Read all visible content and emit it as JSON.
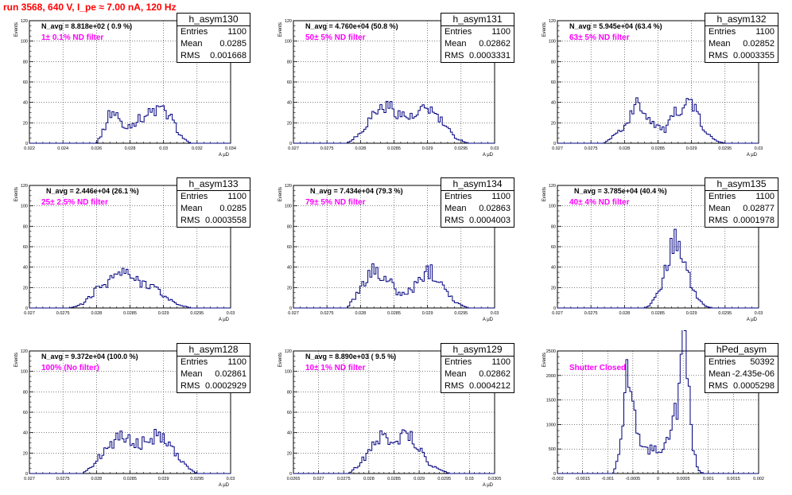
{
  "title": "run 3568,   640 V, I_pe ≈ 7.00 nA, 120 Hz",
  "colors": {
    "title": "#ff0000",
    "hist": "#000080",
    "filter": "#ff00ff",
    "grid": "#000000"
  },
  "chart_data": [
    {
      "type": "bar",
      "histogram": "h_asym130",
      "navg": "N_avg = 8.818e+02 ( 0.9 %)",
      "filter": "1± 0.1% ND filter",
      "stats": {
        "entries": "1100",
        "mean": "0.0285",
        "rms": "0.001668"
      },
      "xlim": [
        0.022,
        0.034
      ],
      "ylim": [
        0,
        120
      ],
      "ylabel": "Events",
      "xlabel": "A μD",
      "xticks": [
        0.022,
        0.024,
        0.026,
        0.028,
        0.03,
        0.032,
        0.034
      ],
      "xtick_labels": [
        "0.022",
        "0.024",
        "0.026",
        "0.028",
        "0.03",
        "0.032",
        "0.034"
      ],
      "yticks": [
        0,
        20,
        40,
        60,
        80,
        100,
        120
      ],
      "shape": [
        [
          0.026,
          0
        ],
        [
          0.0264,
          12
        ],
        [
          0.0268,
          30
        ],
        [
          0.0272,
          30
        ],
        [
          0.0276,
          14
        ],
        [
          0.0282,
          20
        ],
        [
          0.029,
          28
        ],
        [
          0.0298,
          34
        ],
        [
          0.0304,
          26
        ],
        [
          0.031,
          8
        ],
        [
          0.0314,
          2
        ],
        [
          0.0316,
          0
        ]
      ]
    },
    {
      "type": "bar",
      "histogram": "h_asym131",
      "navg": "N_avg = 4.760e+04 (50.8 %)",
      "filter": "50± 5% ND filter",
      "stats": {
        "entries": "1100",
        "mean": "0.02862",
        "rms": "0.0003331"
      },
      "xlim": [
        0.027,
        0.03
      ],
      "ylim": [
        0,
        120
      ],
      "ylabel": "Events",
      "xlabel": "A μD",
      "xticks": [
        0.027,
        0.0275,
        0.028,
        0.0285,
        0.029,
        0.0295,
        0.03
      ],
      "xtick_labels": [
        "0.027",
        "0.0275",
        "0.028",
        "0.0285",
        "0.029",
        "0.0295",
        "0.03"
      ],
      "yticks": [
        0,
        20,
        40,
        60,
        80,
        100,
        120
      ],
      "shape": [
        [
          0.0278,
          0
        ],
        [
          0.028,
          10
        ],
        [
          0.0282,
          30
        ],
        [
          0.0284,
          38
        ],
        [
          0.0286,
          28
        ],
        [
          0.0288,
          24
        ],
        [
          0.029,
          36
        ],
        [
          0.0292,
          22
        ],
        [
          0.0294,
          6
        ],
        [
          0.0296,
          0
        ]
      ]
    },
    {
      "type": "bar",
      "histogram": "h_asym132",
      "navg": "N_avg = 5.945e+04 (63.4 %)",
      "filter": "63± 5% ND filter",
      "stats": {
        "entries": "1100",
        "mean": "0.02852",
        "rms": "0.0003355"
      },
      "xlim": [
        0.027,
        0.03
      ],
      "ylim": [
        0,
        120
      ],
      "ylabel": "Events",
      "xlabel": "A μD",
      "xticks": [
        0.027,
        0.0275,
        0.028,
        0.0285,
        0.029,
        0.0295,
        0.03
      ],
      "xtick_labels": [
        "0.027",
        "0.0275",
        "0.028",
        "0.0285",
        "0.029",
        "0.0295",
        "0.03"
      ],
      "yticks": [
        0,
        20,
        40,
        60,
        80,
        100,
        120
      ],
      "shape": [
        [
          0.0277,
          0
        ],
        [
          0.028,
          16
        ],
        [
          0.0282,
          40
        ],
        [
          0.0284,
          22
        ],
        [
          0.0286,
          12
        ],
        [
          0.0288,
          34
        ],
        [
          0.029,
          42
        ],
        [
          0.0292,
          10
        ],
        [
          0.0294,
          2
        ],
        [
          0.0295,
          0
        ]
      ]
    },
    {
      "type": "bar",
      "histogram": "h_asym133",
      "navg": "N_avg = 2.446e+04 (26.1 %)",
      "filter": "25± 2.5% ND filter",
      "stats": {
        "entries": "1100",
        "mean": "0.0285",
        "rms": "0.0003558"
      },
      "xlim": [
        0.027,
        0.03
      ],
      "ylim": [
        0,
        120
      ],
      "ylabel": "Events",
      "xlabel": "A μD",
      "xticks": [
        0.027,
        0.0275,
        0.028,
        0.0285,
        0.029,
        0.0295,
        0.03
      ],
      "xtick_labels": [
        "0.027",
        "0.0275",
        "0.028",
        "0.0285",
        "0.029",
        "0.0295",
        "0.03"
      ],
      "yticks": [
        0,
        20,
        40,
        60,
        80,
        100,
        120
      ],
      "shape": [
        [
          0.0276,
          0
        ],
        [
          0.0278,
          4
        ],
        [
          0.028,
          18
        ],
        [
          0.0282,
          28
        ],
        [
          0.0284,
          36
        ],
        [
          0.0286,
          26
        ],
        [
          0.0288,
          24
        ],
        [
          0.029,
          12
        ],
        [
          0.0292,
          4
        ],
        [
          0.0294,
          0
        ]
      ]
    },
    {
      "type": "bar",
      "histogram": "h_asym134",
      "navg": "N_avg = 7.434e+04 (79.3 %)",
      "filter": "79± 5% ND filter",
      "stats": {
        "entries": "1100",
        "mean": "0.02863",
        "rms": "0.0004003"
      },
      "xlim": [
        0.027,
        0.03
      ],
      "ylim": [
        0,
        120
      ],
      "ylabel": "Events",
      "xlabel": "A μD",
      "xticks": [
        0.027,
        0.0275,
        0.028,
        0.0285,
        0.029,
        0.0295,
        0.03
      ],
      "xtick_labels": [
        "0.027",
        "0.0275",
        "0.028",
        "0.0285",
        "0.029",
        "0.0295",
        "0.03"
      ],
      "yticks": [
        0,
        20,
        40,
        60,
        80,
        100,
        120
      ],
      "shape": [
        [
          0.0278,
          0
        ],
        [
          0.028,
          18
        ],
        [
          0.0282,
          40
        ],
        [
          0.0284,
          28
        ],
        [
          0.0286,
          12
        ],
        [
          0.0288,
          20
        ],
        [
          0.029,
          38
        ],
        [
          0.0292,
          28
        ],
        [
          0.0294,
          6
        ],
        [
          0.0296,
          0
        ]
      ]
    },
    {
      "type": "bar",
      "histogram": "h_asym135",
      "navg": "N_avg = 3.785e+04 (40.4 %)",
      "filter": "40± 4% ND filter",
      "stats": {
        "entries": "1100",
        "mean": "0.02877",
        "rms": "0.0001978"
      },
      "xlim": [
        0.027,
        0.03
      ],
      "ylim": [
        0,
        120
      ],
      "ylabel": "Events",
      "xlabel": "A μD",
      "xticks": [
        0.027,
        0.0275,
        0.028,
        0.0285,
        0.029,
        0.0295,
        0.03
      ],
      "xtick_labels": [
        "0.027",
        "0.0275",
        "0.028",
        "0.0285",
        "0.029",
        "0.0295",
        "0.03"
      ],
      "yticks": [
        0,
        20,
        40,
        60,
        80,
        100,
        120
      ],
      "shape": [
        [
          0.0283,
          0
        ],
        [
          0.0284,
          4
        ],
        [
          0.0285,
          14
        ],
        [
          0.0286,
          34
        ],
        [
          0.0287,
          58
        ],
        [
          0.0288,
          72
        ],
        [
          0.0289,
          48
        ],
        [
          0.029,
          22
        ],
        [
          0.0291,
          8
        ],
        [
          0.0292,
          2
        ],
        [
          0.0293,
          0
        ]
      ]
    },
    {
      "type": "bar",
      "histogram": "h_asym128",
      "navg": "N_avg = 9.372e+04 (100.0 %)",
      "filter": "100% (No filter)",
      "stats": {
        "entries": "1100",
        "mean": "0.02861",
        "rms": "0.0002929"
      },
      "xlim": [
        0.027,
        0.03
      ],
      "ylim": [
        0,
        120
      ],
      "ylabel": "Events",
      "xlabel": "A μD",
      "xticks": [
        0.027,
        0.0275,
        0.028,
        0.0285,
        0.029,
        0.0295,
        0.03
      ],
      "xtick_labels": [
        "0.027",
        "0.0275",
        "0.028",
        "0.0285",
        "0.029",
        "0.0295",
        "0.03"
      ],
      "yticks": [
        0,
        20,
        40,
        60,
        80,
        100,
        120
      ],
      "shape": [
        [
          0.0278,
          0
        ],
        [
          0.028,
          12
        ],
        [
          0.0282,
          30
        ],
        [
          0.0284,
          36
        ],
        [
          0.0286,
          28
        ],
        [
          0.0288,
          34
        ],
        [
          0.029,
          40
        ],
        [
          0.0292,
          18
        ],
        [
          0.0294,
          4
        ],
        [
          0.0295,
          0
        ]
      ]
    },
    {
      "type": "bar",
      "histogram": "h_asym129",
      "navg": "N_avg = 8.890e+03 ( 9.5 %)",
      "filter": "10± 1% ND filter",
      "stats": {
        "entries": "1100",
        "mean": "0.02862",
        "rms": "0.0004212"
      },
      "xlim": [
        0.0265,
        0.0305
      ],
      "ylim": [
        0,
        120
      ],
      "ylabel": "Events",
      "xlabel": "A μD",
      "xticks": [
        0.0265,
        0.027,
        0.0275,
        0.028,
        0.0285,
        0.029,
        0.0295,
        0.03,
        0.0305
      ],
      "xtick_labels": [
        "0.0265",
        "0.027",
        "0.0275",
        "0.028",
        "0.0285",
        "0.029",
        "0.0295",
        "0.03",
        "0.0305"
      ],
      "yticks": [
        0,
        20,
        40,
        60,
        80,
        100,
        120
      ],
      "shape": [
        [
          0.0276,
          0
        ],
        [
          0.0278,
          8
        ],
        [
          0.028,
          22
        ],
        [
          0.0282,
          34
        ],
        [
          0.0284,
          36
        ],
        [
          0.0286,
          34
        ],
        [
          0.0288,
          40
        ],
        [
          0.029,
          24
        ],
        [
          0.0292,
          10
        ],
        [
          0.0294,
          4
        ],
        [
          0.0296,
          0
        ]
      ]
    },
    {
      "type": "bar",
      "histogram": "hPed_asym",
      "navg": "",
      "filter": "Shutter Closed",
      "stats": {
        "entries": "50392",
        "mean": "-2.435e-06",
        "rms": "0.0005298"
      },
      "xlim": [
        -0.002,
        0.002
      ],
      "ylim": [
        0,
        2500
      ],
      "ylabel": "Events",
      "xlabel": "",
      "xticks": [
        -0.002,
        -0.0015,
        -0.001,
        -0.0005,
        0,
        0.0005,
        0.001,
        0.0015,
        0.002
      ],
      "xtick_labels": [
        "-0.002",
        "-0.0015",
        "-0.001",
        "-0.0005",
        "0",
        "0.0005",
        "0.001",
        "0.0015",
        "0.002"
      ],
      "yticks": [
        0,
        500,
        1000,
        1500,
        2000,
        2500
      ],
      "shape": [
        [
          -0.0009,
          0
        ],
        [
          -0.0008,
          300
        ],
        [
          -0.0007,
          1200
        ],
        [
          -0.0006,
          2300
        ],
        [
          -0.0005,
          1400
        ],
        [
          -0.0004,
          700
        ],
        [
          -0.0002,
          500
        ],
        [
          0.0,
          480
        ],
        [
          0.0002,
          650
        ],
        [
          0.0004,
          1500
        ],
        [
          0.0005,
          2800
        ],
        [
          0.0006,
          1800
        ],
        [
          0.0007,
          500
        ],
        [
          0.0008,
          60
        ],
        [
          0.0009,
          0
        ]
      ]
    }
  ]
}
